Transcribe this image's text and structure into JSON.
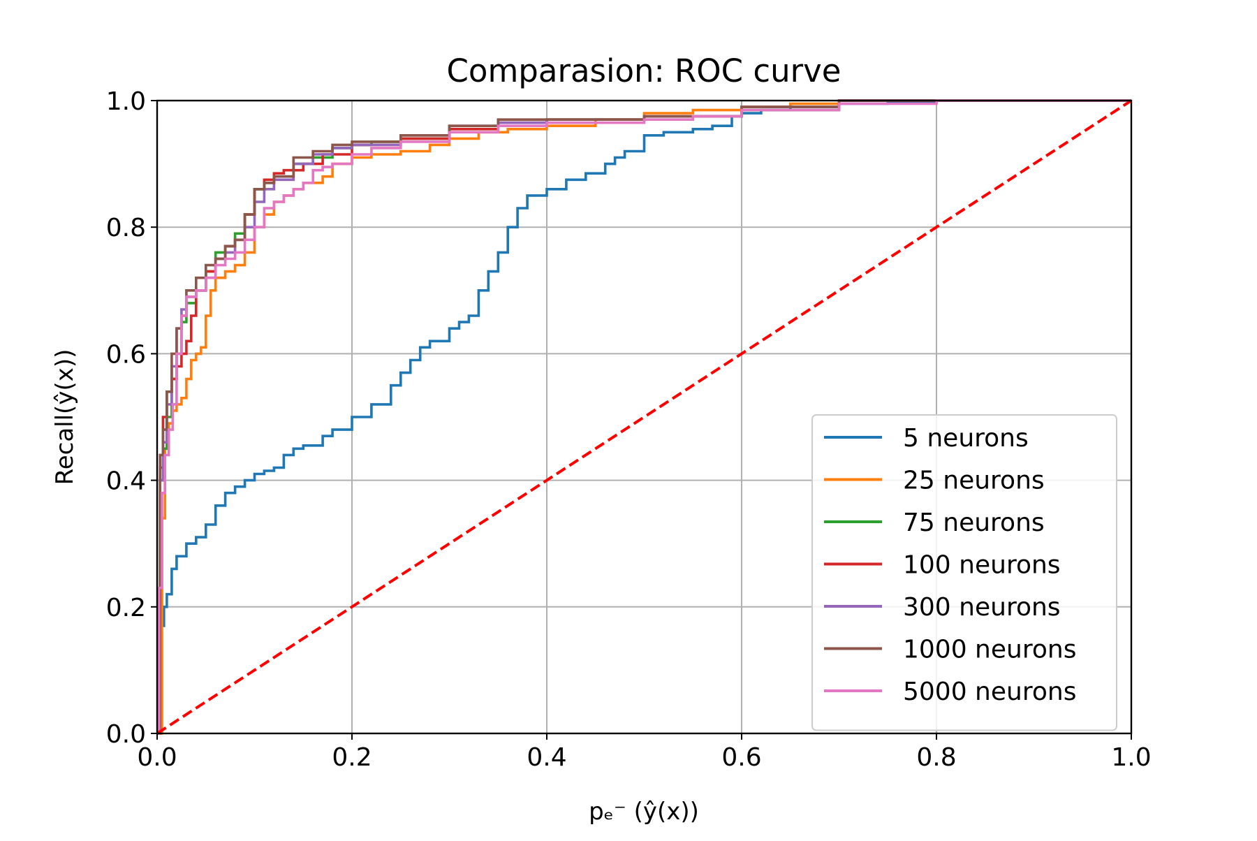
{
  "chart_data": {
    "type": "line",
    "title": "Comparasion: ROC curve",
    "xlabel": "pₑ⁻ (ŷ(x))",
    "ylabel": "Recall(ŷ(x))",
    "xlim": [
      0.0,
      1.0
    ],
    "ylim": [
      0.0,
      1.0
    ],
    "xticks": [
      "0.0",
      "0.2",
      "0.4",
      "0.6",
      "0.8",
      "1.0"
    ],
    "yticks": [
      "0.0",
      "0.2",
      "0.4",
      "0.6",
      "0.8",
      "1.0"
    ],
    "grid": true,
    "legend_position": "lower-right",
    "series": [
      {
        "name": "5 neurons",
        "color": "#1f77b4",
        "x": [
          0.0,
          0.002,
          0.004,
          0.007,
          0.01,
          0.015,
          0.02,
          0.03,
          0.04,
          0.05,
          0.06,
          0.07,
          0.08,
          0.09,
          0.1,
          0.11,
          0.12,
          0.13,
          0.14,
          0.15,
          0.17,
          0.18,
          0.2,
          0.22,
          0.24,
          0.25,
          0.26,
          0.27,
          0.28,
          0.3,
          0.31,
          0.32,
          0.33,
          0.34,
          0.35,
          0.36,
          0.37,
          0.38,
          0.4,
          0.42,
          0.44,
          0.46,
          0.47,
          0.48,
          0.5,
          0.52,
          0.55,
          0.57,
          0.59,
          0.6,
          0.62,
          0.65,
          0.7,
          0.75,
          0.8,
          0.82,
          1.0
        ],
        "y": [
          0.0,
          0.1,
          0.17,
          0.2,
          0.22,
          0.26,
          0.28,
          0.3,
          0.31,
          0.33,
          0.36,
          0.38,
          0.39,
          0.4,
          0.41,
          0.415,
          0.42,
          0.44,
          0.45,
          0.455,
          0.47,
          0.48,
          0.5,
          0.52,
          0.55,
          0.57,
          0.59,
          0.61,
          0.62,
          0.64,
          0.65,
          0.66,
          0.7,
          0.73,
          0.76,
          0.8,
          0.83,
          0.85,
          0.86,
          0.875,
          0.885,
          0.9,
          0.91,
          0.92,
          0.945,
          0.95,
          0.955,
          0.96,
          0.975,
          0.98,
          0.985,
          0.99,
          0.995,
          0.998,
          1.0,
          1.0,
          1.0
        ]
      },
      {
        "name": "25 neurons",
        "color": "#ff7f0e",
        "x": [
          0.0,
          0.005,
          0.008,
          0.012,
          0.016,
          0.02,
          0.025,
          0.03,
          0.035,
          0.04,
          0.045,
          0.05,
          0.055,
          0.06,
          0.07,
          0.08,
          0.09,
          0.1,
          0.11,
          0.12,
          0.13,
          0.14,
          0.15,
          0.16,
          0.17,
          0.18,
          0.2,
          0.22,
          0.25,
          0.28,
          0.3,
          0.33,
          0.36,
          0.4,
          0.45,
          0.5,
          0.55,
          0.6,
          0.65,
          0.7,
          1.0
        ],
        "y": [
          0.0,
          0.34,
          0.45,
          0.49,
          0.51,
          0.52,
          0.53,
          0.56,
          0.59,
          0.6,
          0.61,
          0.66,
          0.7,
          0.72,
          0.73,
          0.74,
          0.76,
          0.8,
          0.82,
          0.84,
          0.85,
          0.86,
          0.87,
          0.87,
          0.88,
          0.9,
          0.91,
          0.915,
          0.92,
          0.93,
          0.94,
          0.95,
          0.955,
          0.96,
          0.97,
          0.98,
          0.985,
          0.99,
          0.995,
          1.0,
          1.0
        ]
      },
      {
        "name": "75 neurons",
        "color": "#2ca02c",
        "x": [
          0.0,
          0.003,
          0.006,
          0.01,
          0.015,
          0.02,
          0.025,
          0.03,
          0.04,
          0.05,
          0.06,
          0.07,
          0.08,
          0.09,
          0.1,
          0.11,
          0.12,
          0.14,
          0.16,
          0.18,
          0.2,
          0.22,
          0.25,
          0.3,
          0.35,
          0.4,
          0.5,
          0.6,
          0.7,
          1.0
        ],
        "y": [
          0.0,
          0.4,
          0.45,
          0.5,
          0.56,
          0.6,
          0.65,
          0.68,
          0.7,
          0.73,
          0.76,
          0.77,
          0.79,
          0.82,
          0.86,
          0.87,
          0.88,
          0.9,
          0.91,
          0.925,
          0.93,
          0.935,
          0.94,
          0.955,
          0.965,
          0.97,
          0.975,
          0.985,
          1.0,
          1.0
        ]
      },
      {
        "name": "100 neurons",
        "color": "#d62728",
        "x": [
          0.0,
          0.003,
          0.006,
          0.01,
          0.015,
          0.02,
          0.025,
          0.03,
          0.035,
          0.04,
          0.05,
          0.06,
          0.07,
          0.08,
          0.09,
          0.1,
          0.11,
          0.12,
          0.13,
          0.15,
          0.17,
          0.2,
          0.25,
          0.3,
          0.35,
          0.4,
          0.5,
          0.6,
          0.7,
          1.0
        ],
        "y": [
          0.0,
          0.42,
          0.5,
          0.54,
          0.56,
          0.58,
          0.6,
          0.62,
          0.66,
          0.7,
          0.73,
          0.75,
          0.77,
          0.78,
          0.82,
          0.86,
          0.875,
          0.885,
          0.89,
          0.9,
          0.915,
          0.93,
          0.94,
          0.955,
          0.965,
          0.97,
          0.975,
          0.99,
          1.0,
          1.0
        ]
      },
      {
        "name": "300 neurons",
        "color": "#9467bd",
        "x": [
          0.0,
          0.003,
          0.006,
          0.01,
          0.015,
          0.02,
          0.025,
          0.03,
          0.04,
          0.05,
          0.06,
          0.07,
          0.08,
          0.09,
          0.1,
          0.11,
          0.12,
          0.14,
          0.16,
          0.18,
          0.2,
          0.25,
          0.3,
          0.35,
          0.4,
          0.5,
          0.6,
          0.7,
          1.0
        ],
        "y": [
          0.0,
          0.4,
          0.46,
          0.52,
          0.58,
          0.64,
          0.67,
          0.69,
          0.7,
          0.72,
          0.75,
          0.76,
          0.78,
          0.8,
          0.84,
          0.86,
          0.875,
          0.9,
          0.915,
          0.925,
          0.93,
          0.945,
          0.96,
          0.965,
          0.97,
          0.975,
          0.99,
          1.0,
          1.0
        ]
      },
      {
        "name": "1000 neurons",
        "color": "#8c564b",
        "x": [
          0.0,
          0.003,
          0.006,
          0.01,
          0.015,
          0.02,
          0.025,
          0.03,
          0.04,
          0.05,
          0.06,
          0.07,
          0.08,
          0.09,
          0.1,
          0.11,
          0.12,
          0.14,
          0.16,
          0.18,
          0.2,
          0.25,
          0.3,
          0.35,
          0.4,
          0.5,
          0.6,
          0.7,
          1.0
        ],
        "y": [
          0.0,
          0.44,
          0.48,
          0.54,
          0.6,
          0.64,
          0.66,
          0.7,
          0.72,
          0.74,
          0.75,
          0.77,
          0.78,
          0.82,
          0.86,
          0.87,
          0.88,
          0.91,
          0.92,
          0.93,
          0.935,
          0.945,
          0.96,
          0.97,
          0.97,
          0.975,
          0.99,
          1.0,
          1.0
        ]
      },
      {
        "name": "5000 neurons",
        "color": "#e377c2",
        "x": [
          0.0,
          0.002,
          0.005,
          0.008,
          0.012,
          0.016,
          0.02,
          0.025,
          0.03,
          0.04,
          0.05,
          0.06,
          0.07,
          0.08,
          0.09,
          0.1,
          0.11,
          0.12,
          0.13,
          0.14,
          0.15,
          0.16,
          0.17,
          0.18,
          0.2,
          0.22,
          0.25,
          0.3,
          0.35,
          0.4,
          0.5,
          0.55,
          0.6,
          0.7,
          0.8,
          1.0
        ],
        "y": [
          0.0,
          0.23,
          0.38,
          0.44,
          0.48,
          0.52,
          0.6,
          0.66,
          0.69,
          0.7,
          0.72,
          0.74,
          0.75,
          0.76,
          0.78,
          0.8,
          0.83,
          0.84,
          0.85,
          0.86,
          0.87,
          0.89,
          0.895,
          0.9,
          0.915,
          0.925,
          0.935,
          0.95,
          0.96,
          0.965,
          0.97,
          0.975,
          0.985,
          0.995,
          1.0,
          1.0
        ]
      }
    ],
    "reference_line": {
      "x": [
        0.0,
        1.0
      ],
      "y": [
        0.0,
        1.0
      ],
      "color": "#ff0000",
      "style": "dashed"
    }
  }
}
